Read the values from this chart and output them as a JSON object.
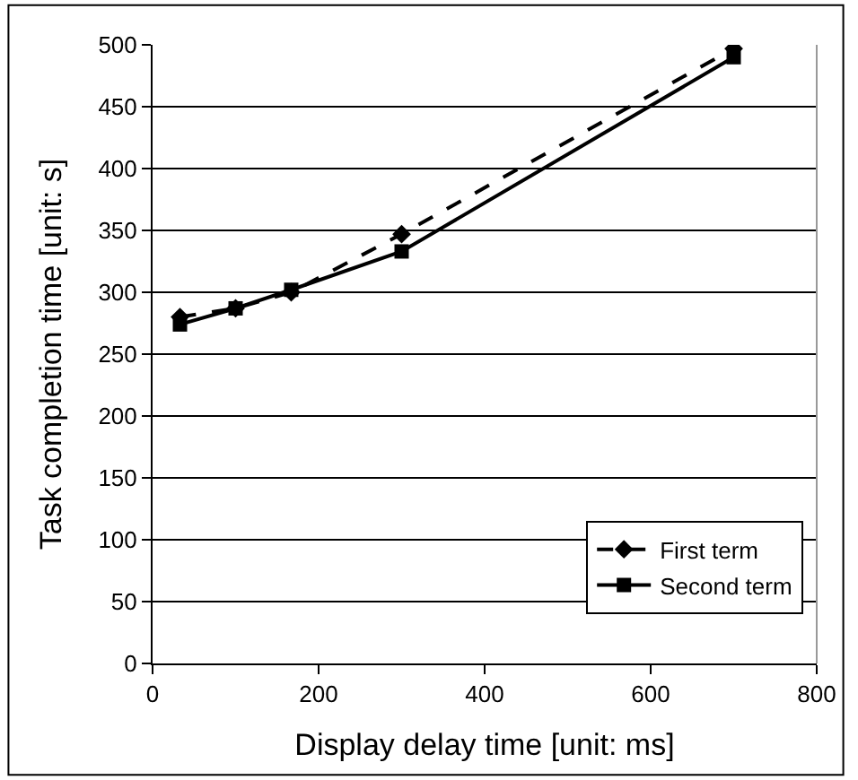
{
  "chart_data": {
    "type": "line",
    "xlabel": "Display delay time [unit: ms]",
    "ylabel": "Task completion time [unit: s]",
    "x": [
      33,
      100,
      167,
      300,
      700
    ],
    "series": [
      {
        "name": "First term",
        "color": "#000000",
        "values": [
          280,
          287,
          300,
          347,
          497
        ],
        "marker": "diamond",
        "line_style": "dashed"
      },
      {
        "name": "Second term",
        "color": "#000000",
        "values": [
          274,
          287,
          302,
          333,
          490
        ],
        "marker": "square",
        "line_style": "solid"
      }
    ],
    "xlim": [
      0,
      800
    ],
    "xticks": [
      0,
      200,
      400,
      600,
      800
    ],
    "ylim": [
      0,
      500
    ],
    "yticks": [
      0,
      50,
      100,
      150,
      200,
      250,
      300,
      350,
      400,
      450,
      500
    ],
    "grid": "y",
    "legend": "bottom right"
  }
}
